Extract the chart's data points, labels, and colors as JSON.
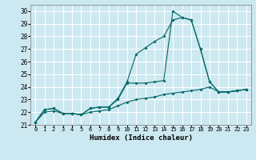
{
  "xlabel": "Humidex (Indice chaleur)",
  "bg_color": "#cce8f0",
  "grid_color": "#ffffff",
  "line_color": "#006666",
  "xlim": [
    -0.5,
    23.5
  ],
  "ylim": [
    21,
    30.5
  ],
  "xticks": [
    0,
    1,
    2,
    3,
    4,
    5,
    6,
    7,
    8,
    9,
    10,
    11,
    12,
    13,
    14,
    15,
    16,
    17,
    18,
    19,
    20,
    21,
    22,
    23
  ],
  "yticks": [
    21,
    22,
    23,
    24,
    25,
    26,
    27,
    28,
    29,
    30
  ],
  "line1_x": [
    0,
    1,
    2,
    3,
    4,
    5,
    6,
    7,
    8,
    9,
    10,
    11,
    12,
    13,
    14,
    15,
    16,
    17,
    18,
    19,
    20,
    21,
    22,
    23
  ],
  "line1_y": [
    21.2,
    22.2,
    22.3,
    21.9,
    21.9,
    21.8,
    22.3,
    22.4,
    22.4,
    23.1,
    24.4,
    26.6,
    27.1,
    27.6,
    28.0,
    29.3,
    29.5,
    29.3,
    27.0,
    24.4,
    23.6,
    23.6,
    23.7,
    23.8
  ],
  "line2_x": [
    0,
    1,
    2,
    3,
    4,
    5,
    6,
    7,
    8,
    9,
    10,
    11,
    12,
    13,
    14,
    15,
    16,
    17,
    18,
    19,
    20,
    21,
    22,
    23
  ],
  "line2_y": [
    21.2,
    22.2,
    22.3,
    21.9,
    21.9,
    21.8,
    22.3,
    22.4,
    22.4,
    23.0,
    24.3,
    24.3,
    24.3,
    24.4,
    24.5,
    30.0,
    29.5,
    29.3,
    27.0,
    24.4,
    23.6,
    23.6,
    23.7,
    23.8
  ],
  "line3_x": [
    0,
    1,
    2,
    3,
    4,
    5,
    6,
    7,
    8,
    9,
    10,
    11,
    12,
    13,
    14,
    15,
    16,
    17,
    18,
    19,
    20,
    21,
    22,
    23
  ],
  "line3_y": [
    21.2,
    22.0,
    22.1,
    21.9,
    21.9,
    21.8,
    22.0,
    22.1,
    22.2,
    22.5,
    22.8,
    23.0,
    23.1,
    23.2,
    23.4,
    23.5,
    23.6,
    23.7,
    23.8,
    24.0,
    23.6,
    23.6,
    23.7,
    23.8
  ]
}
